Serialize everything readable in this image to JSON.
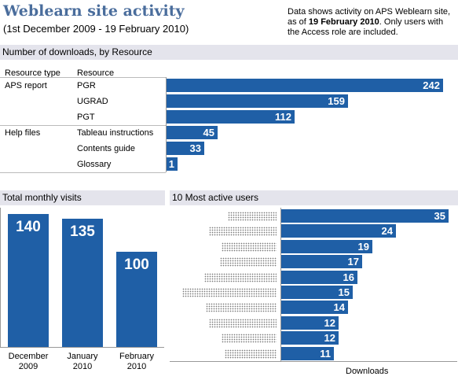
{
  "header": {
    "title": "Weblearn site activity",
    "subtitle": "(1st December 2009 - 19 February 2010)",
    "note_prefix": "Data shows activity on APS Weblearn site, as of ",
    "note_date": "19 February 2010",
    "note_suffix": ". Only users with the Access role are included."
  },
  "colors": {
    "bar": "#1f5fa6",
    "title": "#4a6d9c",
    "section": "#e4e4ec"
  },
  "chart_data": [
    {
      "type": "bar",
      "orientation": "horizontal",
      "title": "Number of downloads, by Resource",
      "col_headers": {
        "type": "Resource type",
        "resource": "Resource"
      },
      "groups": [
        {
          "name": "APS report",
          "resources": [
            "PGR",
            "UGRAD",
            "PGT"
          ],
          "values": [
            242,
            159,
            112
          ]
        },
        {
          "name": "Help files",
          "resources": [
            "Tableau instructions",
            "Contents guide",
            "Glossary"
          ],
          "values": [
            45,
            33,
            1
          ]
        }
      ]
    },
    {
      "type": "bar",
      "orientation": "vertical",
      "title": "Total monthly visits",
      "categories": [
        "December 2009",
        "January 2010",
        "February 2010"
      ],
      "values": [
        140,
        135,
        100
      ]
    },
    {
      "type": "bar",
      "orientation": "horizontal",
      "title": "10 Most active users",
      "xlabel": "Downloads",
      "values": [
        35,
        24,
        19,
        17,
        16,
        15,
        14,
        12,
        12,
        11
      ]
    }
  ]
}
